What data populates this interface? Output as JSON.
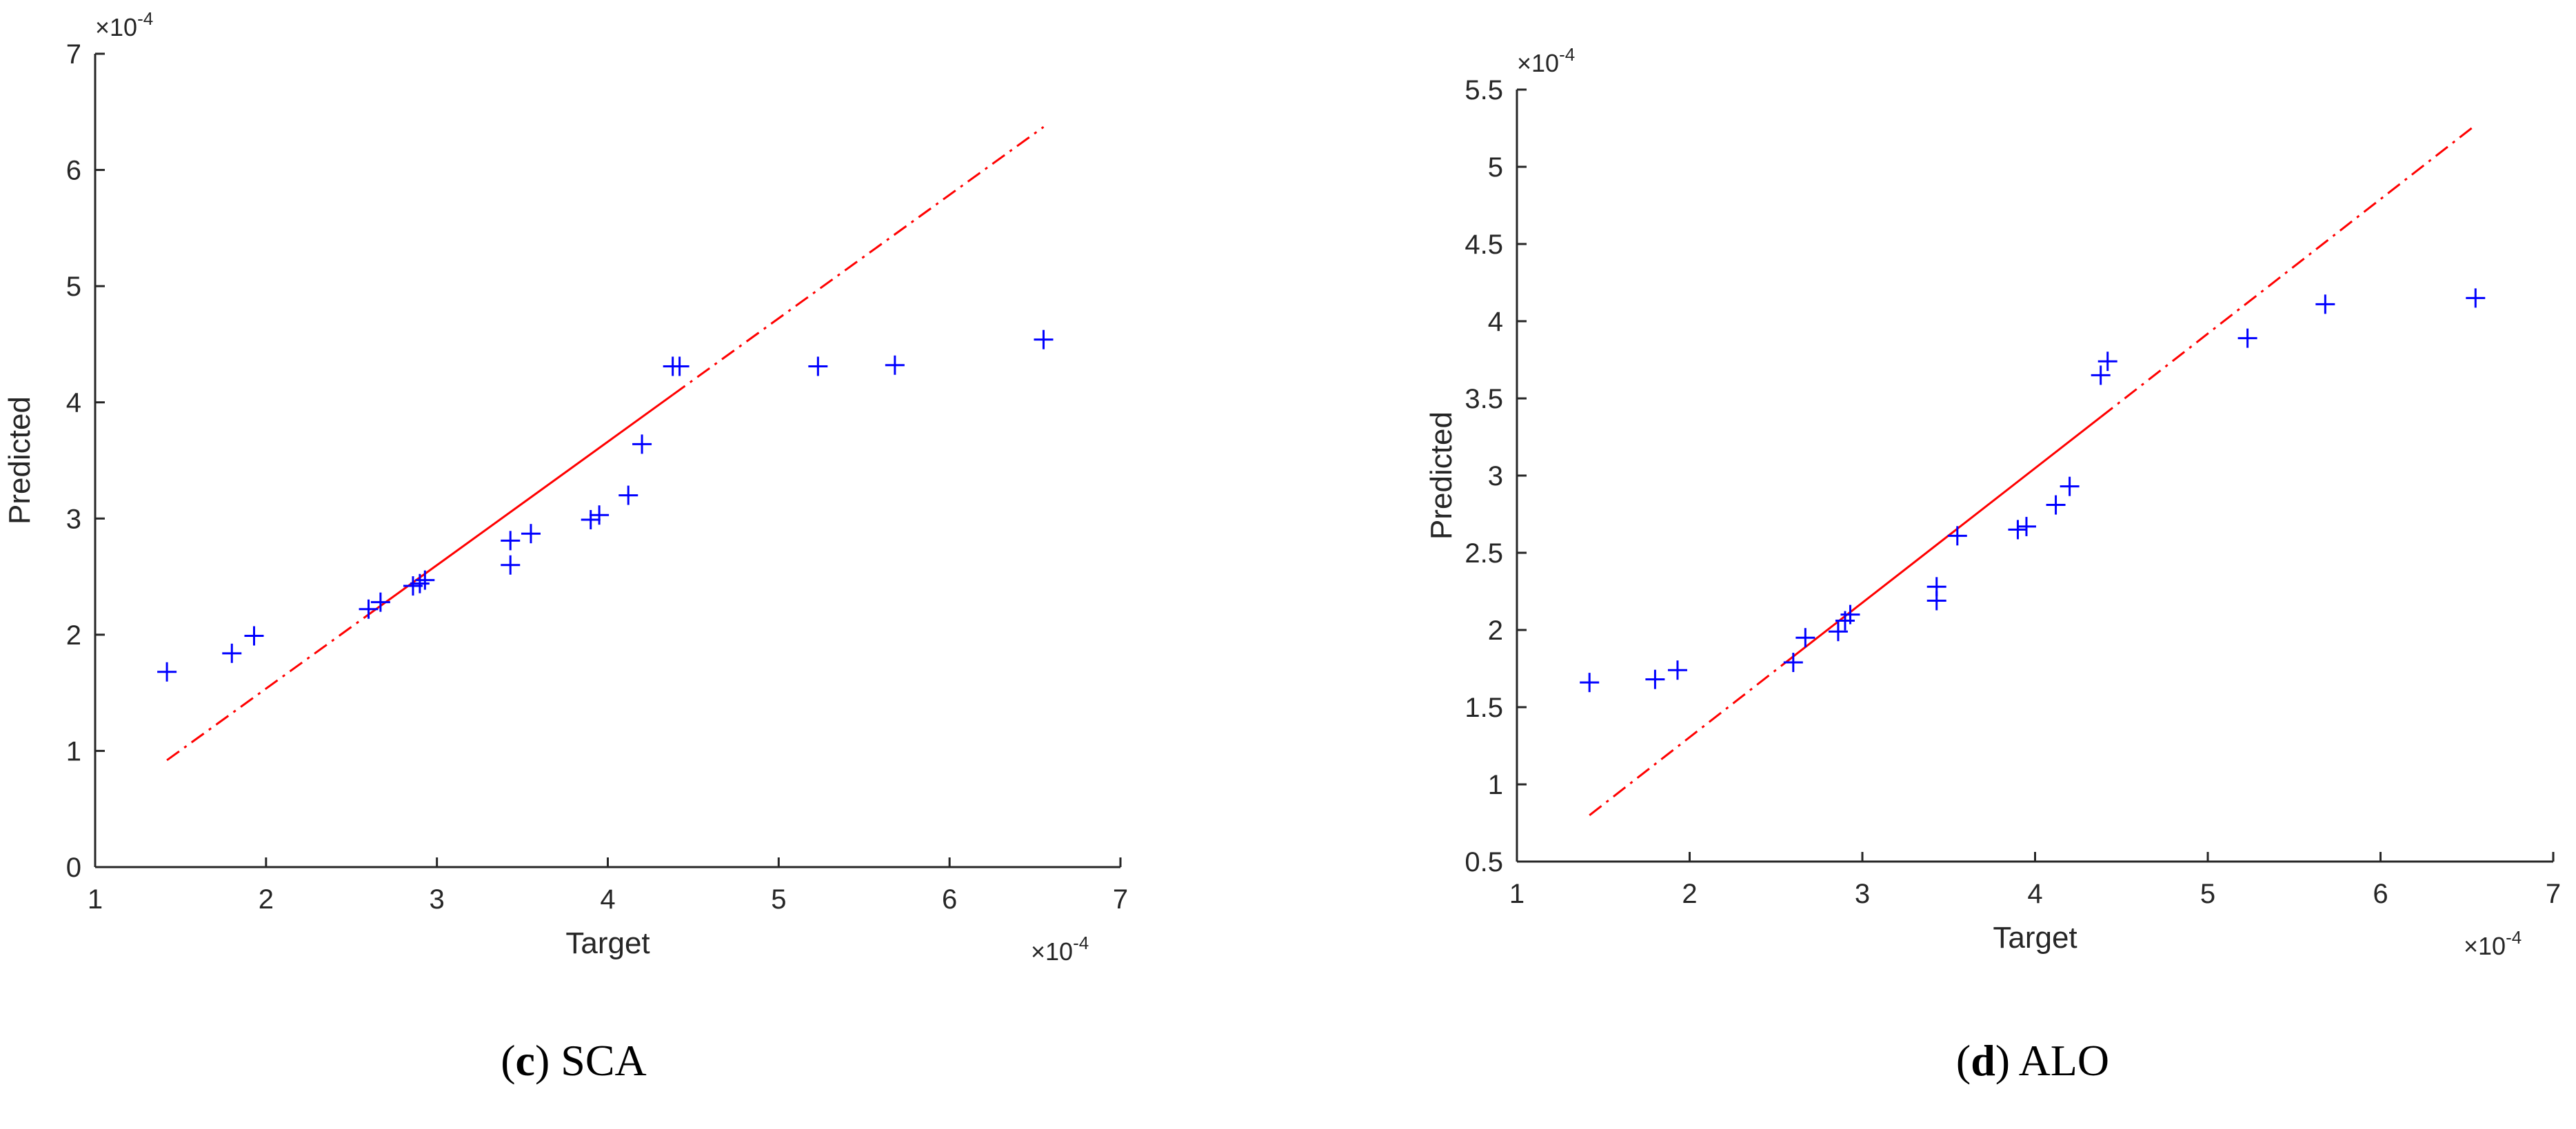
{
  "chart_data": [
    {
      "type": "scatter",
      "caption": {
        "letter": "c",
        "text": "SCA"
      },
      "xlabel": "Target",
      "ylabel": "Predicted",
      "x_multiplier": "×10",
      "x_exponent": "-4",
      "y_multiplier": "×10",
      "y_exponent": "-4",
      "xlim": [
        1,
        7
      ],
      "ylim": [
        0,
        7
      ],
      "x_ticks": [
        1,
        2,
        3,
        4,
        5,
        6,
        7
      ],
      "y_ticks": [
        0,
        1,
        2,
        3,
        4,
        5,
        6,
        7
      ],
      "marker_color": "#0000ff",
      "fit_color": "#ff0000",
      "points": [
        [
          1.42,
          1.68
        ],
        [
          1.8,
          1.84
        ],
        [
          1.93,
          1.99
        ],
        [
          2.6,
          2.22
        ],
        [
          2.67,
          2.28
        ],
        [
          2.86,
          2.42
        ],
        [
          2.9,
          2.44
        ],
        [
          2.93,
          2.47
        ],
        [
          3.43,
          2.6
        ],
        [
          3.43,
          2.81
        ],
        [
          3.55,
          2.87
        ],
        [
          3.9,
          2.99
        ],
        [
          3.95,
          3.03
        ],
        [
          4.12,
          3.2
        ],
        [
          4.2,
          3.64
        ],
        [
          4.38,
          4.31
        ],
        [
          4.42,
          4.31
        ],
        [
          5.23,
          4.31
        ],
        [
          5.68,
          4.32
        ],
        [
          6.55,
          4.54
        ]
      ],
      "fit_line": {
        "x_start": 1.42,
        "x_end": 6.55,
        "y_start": 0.92,
        "y_end": 6.37,
        "solid_from": 2.6,
        "solid_to": 4.38
      }
    },
    {
      "type": "scatter",
      "caption": {
        "letter": "d",
        "text": "ALO"
      },
      "xlabel": "Target",
      "ylabel": "Predicted",
      "x_multiplier": "×10",
      "x_exponent": "-4",
      "y_multiplier": "×10",
      "y_exponent": "-4",
      "xlim": [
        1,
        7
      ],
      "ylim": [
        0.5,
        5.5
      ],
      "x_ticks": [
        1,
        2,
        3,
        4,
        5,
        6,
        7
      ],
      "y_ticks": [
        0.5,
        1,
        1.5,
        2,
        2.5,
        3,
        3.5,
        4,
        4.5,
        5,
        5.5
      ],
      "marker_color": "#0000ff",
      "fit_color": "#ff0000",
      "points": [
        [
          1.42,
          1.66
        ],
        [
          1.8,
          1.68
        ],
        [
          1.93,
          1.74
        ],
        [
          2.6,
          1.79
        ],
        [
          2.67,
          1.95
        ],
        [
          2.86,
          1.99
        ],
        [
          2.9,
          2.06
        ],
        [
          2.93,
          2.1
        ],
        [
          3.43,
          2.19
        ],
        [
          3.43,
          2.28
        ],
        [
          3.55,
          2.61
        ],
        [
          3.9,
          2.65
        ],
        [
          3.95,
          2.67
        ],
        [
          4.12,
          2.81
        ],
        [
          4.2,
          2.93
        ],
        [
          4.38,
          3.65
        ],
        [
          4.42,
          3.74
        ],
        [
          5.23,
          3.89
        ],
        [
          5.68,
          4.11
        ],
        [
          6.55,
          4.15
        ]
      ],
      "fit_line": {
        "x_start": 1.42,
        "x_end": 6.55,
        "y_start": 0.8,
        "y_end": 5.27,
        "solid_from": 2.6,
        "solid_to": 4.38
      }
    }
  ]
}
